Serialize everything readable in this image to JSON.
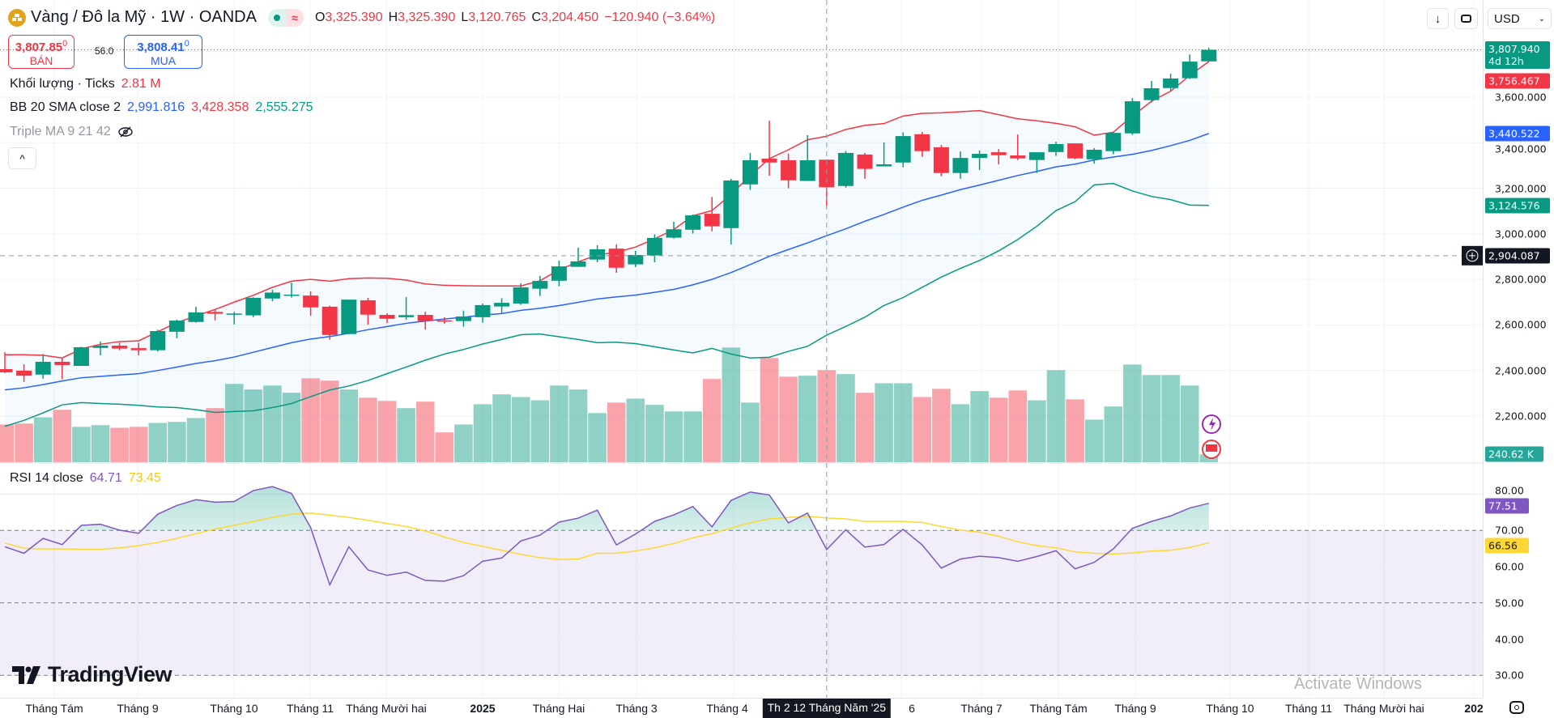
{
  "header": {
    "title": "Vàng / Đô la Mỹ · 1W · OANDA",
    "ohlc": [
      {
        "k": "O",
        "v": "3,325.390"
      },
      {
        "k": "H",
        "v": "3,325.390"
      },
      {
        "k": "L",
        "v": "3,120.765"
      },
      {
        "k": "C",
        "v": "3,204.450"
      }
    ],
    "change": "−120.940 (−3.64%)",
    "status_icons": [
      "market-open-dot-icon",
      "delayed-data-wave-icon"
    ]
  },
  "quote": {
    "sell_price": "3,807.85",
    "sell_sup": "0",
    "sell_label": "BÁN",
    "spread": "56.0",
    "buy_price": "3,808.41",
    "buy_sup": "0",
    "buy_label": "MUA"
  },
  "legend": {
    "volume": {
      "label": "Khối lượng · Ticks",
      "value": "2.81 M"
    },
    "bb": {
      "label": "BB 20 SMA close 2",
      "mid": "2,991.816",
      "upper": "3,428.358",
      "lower": "2,555.275"
    },
    "triple_ma": {
      "label": "Triple MA 9 21 42",
      "icon": "eye-hidden-icon"
    },
    "rsi": {
      "label": "RSI 14 close",
      "value": "64.71",
      "ma": "73.45"
    },
    "collapse": "^"
  },
  "toolbar": {
    "down": "↓",
    "currency": "USD"
  },
  "price_axis": [
    "3,600.000",
    "3,400.000",
    "3,200.000",
    "3,000.000",
    "2,800.000",
    "2,600.000",
    "2,400.000",
    "2,200.000"
  ],
  "rsi_axis": [
    "80.00",
    "70.00",
    "60.00",
    "50.00",
    "40.00",
    "30.00"
  ],
  "tags": {
    "last": "3,807.940",
    "countdown": "4d 12h",
    "bb_upper": "3,756.467",
    "bb_mid": "3,440.522",
    "bb_lower": "3,124.576",
    "crosshair": "2,904.087",
    "volume": "240.62 K",
    "rsi": "77.51",
    "rsi_ma": "66.56"
  },
  "time_axis": {
    "labels": [
      "Tháng Tám",
      "Tháng 9",
      "Tháng 10",
      "Tháng 11",
      "Tháng Mười hai",
      "2025",
      "Tháng Hai",
      "Tháng 3",
      "Tháng 4",
      "6",
      "Tháng 7",
      "Tháng Tám",
      "Tháng 9",
      "Tháng 10",
      "Tháng 11",
      "Tháng Mười hai",
      "202"
    ],
    "crosshair": "Th 2 12 Tháng Năm '25"
  },
  "watermark": "TradingView",
  "os_overlay": "Activate Windows",
  "colors": {
    "up": "#089981",
    "down": "#f23645",
    "bb_upper": "#f23645",
    "bb_mid": "#2962ff",
    "bb_lower": "#089981",
    "rsi": "#7e57c2",
    "rsi_ma": "#fdd835"
  },
  "chart_data": {
    "type": "candlestick",
    "interval": "1W",
    "crosshair_index": 43,
    "ohlc": [
      [
        2406,
        2480,
        2389,
        2392
      ],
      [
        2399,
        2427,
        2349,
        2377
      ],
      [
        2382,
        2472,
        2364,
        2438
      ],
      [
        2438,
        2453,
        2361,
        2424
      ],
      [
        2420,
        2504,
        2420,
        2502
      ],
      [
        2499,
        2527,
        2467,
        2509
      ],
      [
        2509,
        2522,
        2489,
        2496
      ],
      [
        2498,
        2522,
        2467,
        2489
      ],
      [
        2489,
        2579,
        2483,
        2573
      ],
      [
        2570,
        2623,
        2542,
        2619
      ],
      [
        2613,
        2680,
        2610,
        2655
      ],
      [
        2657,
        2670,
        2620,
        2649
      ],
      [
        2645,
        2657,
        2602,
        2650
      ],
      [
        2642,
        2721,
        2634,
        2719
      ],
      [
        2716,
        2754,
        2704,
        2742
      ],
      [
        2730,
        2786,
        2720,
        2733
      ],
      [
        2729,
        2747,
        2640,
        2677
      ],
      [
        2680,
        2684,
        2535,
        2556
      ],
      [
        2560,
        2711,
        2560,
        2711
      ],
      [
        2708,
        2719,
        2601,
        2645
      ],
      [
        2644,
        2651,
        2608,
        2627
      ],
      [
        2634,
        2722,
        2623,
        2643
      ],
      [
        2644,
        2658,
        2580,
        2617
      ],
      [
        2620,
        2634,
        2605,
        2617
      ],
      [
        2617,
        2663,
        2592,
        2637
      ],
      [
        2634,
        2694,
        2610,
        2687
      ],
      [
        2681,
        2717,
        2652,
        2697
      ],
      [
        2694,
        2783,
        2688,
        2765
      ],
      [
        2759,
        2815,
        2727,
        2793
      ],
      [
        2794,
        2882,
        2770,
        2857
      ],
      [
        2855,
        2939,
        2855,
        2879
      ],
      [
        2887,
        2950,
        2875,
        2932
      ],
      [
        2935,
        2953,
        2829,
        2851
      ],
      [
        2866,
        2925,
        2854,
        2907
      ],
      [
        2905,
        2998,
        2875,
        2982
      ],
      [
        2983,
        3053,
        2979,
        3020
      ],
      [
        3018,
        3085,
        3001,
        3081
      ],
      [
        3088,
        3162,
        3011,
        3033
      ],
      [
        3025,
        3241,
        2953,
        3234
      ],
      [
        3217,
        3355,
        3193,
        3323
      ],
      [
        3330,
        3497,
        3255,
        3313
      ],
      [
        3323,
        3352,
        3200,
        3235
      ],
      [
        3232,
        3433,
        3232,
        3323
      ],
      [
        3325.39,
        3325.39,
        3120.765,
        3204.45
      ],
      [
        3210,
        3363,
        3203,
        3355
      ],
      [
        3348,
        3355,
        3242,
        3285
      ],
      [
        3296,
        3401,
        3296,
        3305
      ],
      [
        3313,
        3445,
        3292,
        3429
      ],
      [
        3437,
        3447,
        3338,
        3363
      ],
      [
        3380,
        3390,
        3253,
        3267
      ],
      [
        3267,
        3362,
        3242,
        3333
      ],
      [
        3333,
        3365,
        3280,
        3351
      ],
      [
        3358,
        3372,
        3305,
        3345
      ],
      [
        3344,
        3436,
        3324,
        3331
      ],
      [
        3324,
        3358,
        3267,
        3358
      ],
      [
        3359,
        3404,
        3342,
        3394
      ],
      [
        3397,
        3397,
        3327,
        3331
      ],
      [
        3327,
        3376,
        3308,
        3369
      ],
      [
        3363,
        3446,
        3349,
        3443
      ],
      [
        3441,
        3596,
        3434,
        3582
      ],
      [
        3587,
        3671,
        3576,
        3639
      ],
      [
        3640,
        3703,
        3625,
        3682
      ],
      [
        3683,
        3788,
        3680,
        3756
      ],
      [
        3757,
        3817,
        3757,
        3807.94
      ]
    ],
    "bb_upper": [
      2469,
      2469,
      2467,
      2455,
      2495,
      2515,
      2527,
      2530,
      2570,
      2610,
      2640,
      2668,
      2700,
      2730,
      2765,
      2792,
      2800,
      2792,
      2803,
      2806,
      2805,
      2797,
      2780,
      2774,
      2772,
      2771,
      2771,
      2771,
      2794,
      2842,
      2877,
      2907,
      2919,
      2942,
      2978,
      3019,
      3079,
      3102,
      3173,
      3256,
      3330,
      3369,
      3413,
      3428.358,
      3458,
      3476,
      3484,
      3517,
      3529,
      3531,
      3536,
      3541,
      3523,
      3505,
      3496,
      3485,
      3470,
      3433,
      3446,
      3517,
      3582,
      3626,
      3695,
      3756.467
    ],
    "bb_mid": [
      2315,
      2324,
      2338,
      2354,
      2368,
      2374,
      2380,
      2386,
      2400,
      2415,
      2431,
      2443,
      2459,
      2480,
      2501,
      2522,
      2538,
      2549,
      2563,
      2579,
      2593,
      2607,
      2617,
      2626,
      2634,
      2643,
      2650,
      2664,
      2673,
      2685,
      2699,
      2714,
      2723,
      2731,
      2743,
      2756,
      2776,
      2800,
      2830,
      2865,
      2901,
      2931,
      2960,
      2991.816,
      3022,
      3055,
      3085,
      3117,
      3147,
      3170,
      3194,
      3214,
      3235,
      3256,
      3274,
      3294,
      3306,
      3324,
      3337,
      3349,
      3366,
      3387,
      3410,
      3440.522
    ],
    "bb_lower": [
      2155,
      2181,
      2214,
      2249,
      2259,
      2255,
      2252,
      2247,
      2240,
      2237,
      2228,
      2216,
      2220,
      2223,
      2237,
      2255,
      2285,
      2314,
      2332,
      2356,
      2386,
      2415,
      2445,
      2472,
      2492,
      2516,
      2536,
      2557,
      2560,
      2548,
      2536,
      2522,
      2524,
      2518,
      2504,
      2490,
      2477,
      2497,
      2472,
      2455,
      2458,
      2484,
      2506,
      2555.275,
      2593,
      2634,
      2685,
      2720,
      2765,
      2810,
      2848,
      2883,
      2925,
      2975,
      3033,
      3102,
      3141,
      3215,
      3221,
      3188,
      3164,
      3150,
      3126,
      3124.576
    ],
    "volume_millions": [
      1.15,
      1.18,
      1.37,
      1.6,
      1.08,
      1.13,
      1.05,
      1.08,
      1.2,
      1.23,
      1.35,
      1.65,
      2.39,
      2.22,
      2.34,
      2.12,
      2.56,
      2.49,
      2.22,
      1.97,
      1.87,
      1.65,
      1.85,
      0.91,
      1.15,
      1.77,
      2.07,
      1.99,
      1.89,
      2.34,
      2.22,
      1.5,
      1.82,
      1.94,
      1.75,
      1.55,
      1.55,
      2.54,
      3.5,
      1.82,
      3.18,
      2.61,
      2.64,
      2.81,
      2.69,
      2.12,
      2.41,
      2.41,
      1.99,
      2.24,
      1.77,
      2.17,
      1.97,
      2.19,
      1.89,
      2.81,
      1.92,
      1.3,
      1.7,
      2.98,
      2.66,
      2.66,
      2.34,
      0.24062
    ],
    "rsi": [
      65.5,
      63.7,
      67.8,
      66.1,
      71.4,
      71.7,
      70.1,
      69.2,
      74.5,
      76.9,
      78.5,
      77.8,
      78.0,
      81.0,
      82.1,
      80.2,
      70.8,
      55.0,
      65.5,
      59.1,
      57.6,
      58.5,
      56.2,
      56.0,
      57.5,
      61.5,
      62.4,
      67.1,
      68.7,
      72.3,
      73.4,
      75.6,
      66.0,
      69.0,
      72.5,
      74.3,
      76.6,
      71.0,
      78.3,
      80.6,
      79.8,
      72.1,
      74.8,
      64.71,
      70.2,
      65.4,
      66.1,
      70.3,
      66.0,
      59.6,
      62.1,
      62.9,
      62.5,
      61.5,
      62.8,
      64.4,
      59.4,
      61.2,
      64.9,
      70.6,
      72.5,
      74.0,
      76.2,
      77.51
    ],
    "rsi_ma": [
      66.5,
      65.1,
      64.9,
      64.9,
      64.8,
      64.8,
      65.2,
      65.8,
      66.7,
      67.8,
      69.1,
      70.4,
      71.4,
      72.5,
      73.6,
      74.5,
      74.8,
      74.2,
      73.6,
      72.8,
      71.9,
      71.1,
      69.9,
      68.2,
      66.7,
      65.6,
      64.5,
      63.4,
      62.5,
      62.0,
      62.1,
      63.7,
      63.7,
      64.3,
      65.2,
      66.4,
      68.0,
      69.1,
      70.7,
      72.1,
      73.2,
      73.6,
      73.9,
      73.45,
      73.2,
      72.5,
      72.5,
      72.5,
      72.2,
      71.1,
      70.1,
      69.5,
      68.4,
      66.9,
      65.8,
      65.2,
      64.1,
      63.7,
      63.5,
      63.8,
      64.3,
      64.5,
      65.3,
      66.56
    ],
    "price_range": [
      2130,
      3880
    ],
    "rsi_levels": [
      70,
      50,
      30
    ],
    "crosshair_price": 2904.087
  }
}
